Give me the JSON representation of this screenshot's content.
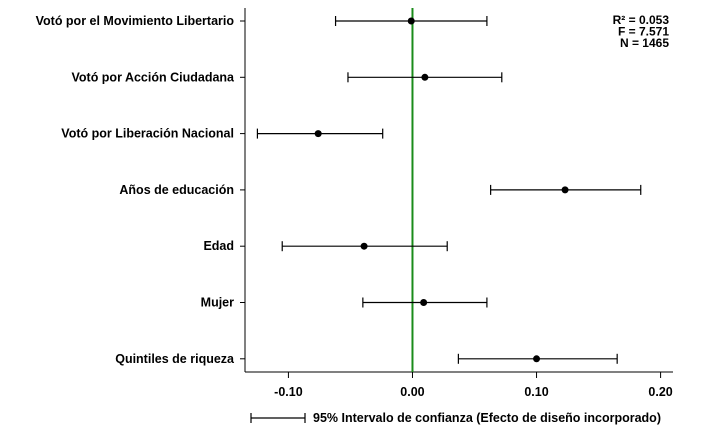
{
  "chart_data": {
    "type": "scatter",
    "subtype": "coefficient-plot",
    "title": "",
    "xlabel": "",
    "ylabel": "",
    "xlim": [
      -0.135,
      0.21
    ],
    "xticks": [
      {
        "value": -0.1,
        "label": "-0.10"
      },
      {
        "value": 0.0,
        "label": "0.00"
      },
      {
        "value": 0.1,
        "label": "0.10"
      },
      {
        "value": 0.2,
        "label": "0.20"
      }
    ],
    "reference_line": {
      "x": 0.0,
      "color": "#1a8c1a"
    },
    "categories": [
      "Votó por el Movimiento Libertario",
      "Votó por Acción Ciudadana",
      "Votó por Liberación Nacional",
      "Años de educación",
      "Edad",
      "Mujer",
      "Quintiles de riqueza"
    ],
    "series": [
      {
        "estimates": [
          -0.001,
          0.01,
          -0.076,
          0.123,
          -0.039,
          0.009,
          0.1
        ],
        "ci_lower": [
          -0.062,
          -0.052,
          -0.125,
          0.063,
          -0.105,
          -0.04,
          0.037
        ],
        "ci_upper": [
          0.06,
          0.072,
          -0.024,
          0.184,
          0.028,
          0.06,
          0.165
        ]
      }
    ],
    "stats": [
      "R² = 0.053",
      "F = 7.571",
      "N = 1465"
    ],
    "legend": {
      "label": "95% Intervalo de confianza (Efecto de diseño incorporado)",
      "position": "bottom"
    },
    "grid": false
  }
}
